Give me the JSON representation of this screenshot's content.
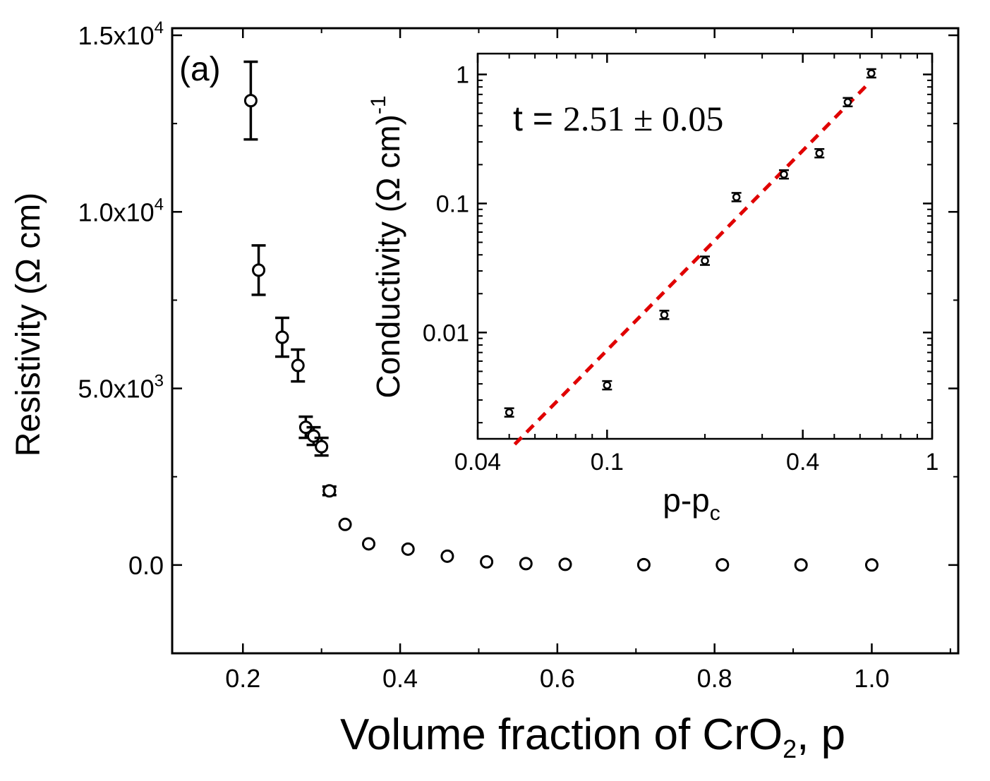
{
  "chart_data": [
    {
      "id": "main",
      "type": "scatter",
      "panel_label": "(a)",
      "xlabel": "Volume fraction of CrO",
      "xlabel_sub": "2",
      "xlabel_tail": ", p",
      "ylabel": "Resistivity (Ω cm)",
      "xlim": [
        0.11,
        1.11
      ],
      "ylim": [
        -2500,
        15200
      ],
      "x_ticks": [
        0.2,
        0.4,
        0.6,
        0.8,
        1.0
      ],
      "x_tick_labels": [
        "0.2",
        "0.4",
        "0.6",
        "0.8",
        "1.0"
      ],
      "y_ticks": [
        0,
        5000,
        10000,
        15000
      ],
      "y_tick_labels": [
        {
          "mant": "0.0",
          "exp": ""
        },
        {
          "mant": "5.0x10",
          "exp": "3"
        },
        {
          "mant": "1.0x10",
          "exp": "4"
        },
        {
          "mant": "1.5x10",
          "exp": "4"
        }
      ],
      "points": [
        {
          "x": 0.21,
          "y": 13150,
          "err": 1100
        },
        {
          "x": 0.22,
          "y": 8350,
          "err": 700
        },
        {
          "x": 0.25,
          "y": 6450,
          "err": 550
        },
        {
          "x": 0.27,
          "y": 5650,
          "err": 450
        },
        {
          "x": 0.28,
          "y": 3900,
          "err": 300
        },
        {
          "x": 0.29,
          "y": 3650,
          "err": 250
        },
        {
          "x": 0.3,
          "y": 3350,
          "err": 250
        },
        {
          "x": 0.31,
          "y": 2100,
          "err": 120
        },
        {
          "x": 0.33,
          "y": 1150,
          "err": 80
        },
        {
          "x": 0.36,
          "y": 600,
          "err": 60
        },
        {
          "x": 0.41,
          "y": 450,
          "err": 40
        },
        {
          "x": 0.46,
          "y": 250,
          "err": 30
        },
        {
          "x": 0.51,
          "y": 90,
          "err": 20
        },
        {
          "x": 0.56,
          "y": 40,
          "err": 10
        },
        {
          "x": 0.61,
          "y": 20,
          "err": 5
        },
        {
          "x": 0.71,
          "y": 10,
          "err": 5
        },
        {
          "x": 0.81,
          "y": 5,
          "err": 3
        },
        {
          "x": 0.91,
          "y": 3,
          "err": 2
        },
        {
          "x": 1.0,
          "y": 2,
          "err": 1
        }
      ]
    },
    {
      "id": "inset",
      "type": "scatter",
      "xscale": "log",
      "yscale": "log",
      "xlabel": "p-p",
      "xlabel_sub": "c",
      "ylabel": "Conductivity (Ω cm)",
      "ylabel_sup": "-1",
      "xlim": [
        0.04,
        1.0
      ],
      "ylim": [
        0.0015,
        1.45
      ],
      "x_ticks": [
        0.04,
        0.1,
        0.4,
        1
      ],
      "x_tick_labels": [
        "0.04",
        "0.1",
        "0.4",
        "1"
      ],
      "y_ticks": [
        0.01,
        0.1,
        1
      ],
      "y_tick_labels": [
        "0.01",
        "0.1",
        "1"
      ],
      "annotation": {
        "lhs": "t = ",
        "rhs": "2.51 ± 0.05"
      },
      "points": [
        {
          "x": 0.05,
          "y": 0.0024
        },
        {
          "x": 0.1,
          "y": 0.0039
        },
        {
          "x": 0.15,
          "y": 0.0137
        },
        {
          "x": 0.2,
          "y": 0.036
        },
        {
          "x": 0.25,
          "y": 0.112
        },
        {
          "x": 0.35,
          "y": 0.168
        },
        {
          "x": 0.45,
          "y": 0.245
        },
        {
          "x": 0.55,
          "y": 0.61
        },
        {
          "x": 0.65,
          "y": 1.02
        }
      ],
      "fit": {
        "exponent": 2.51,
        "x_start": 0.052,
        "x_end": 0.64,
        "y_start": 0.00136,
        "y_end": 0.86,
        "color": "#e00000"
      }
    }
  ]
}
